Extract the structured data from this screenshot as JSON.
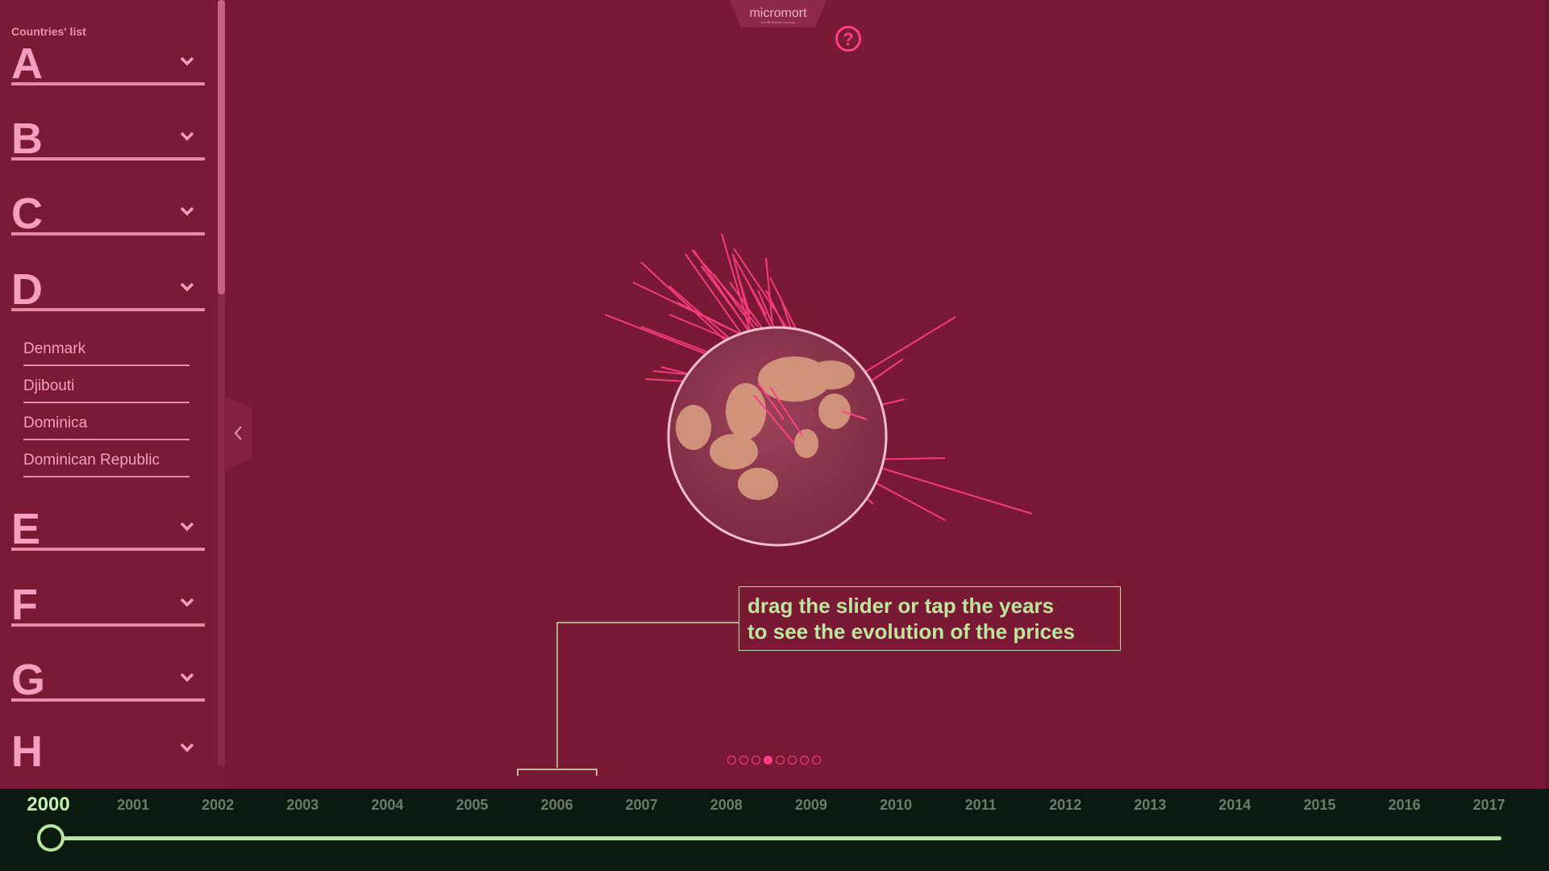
{
  "app": {
    "logo": "micromort",
    "logo_tagline": "the life hazard currency"
  },
  "sidebar": {
    "title": "Countries' list",
    "letters_top": [
      "A",
      "B",
      "C",
      "D"
    ],
    "expanded_letter": "D",
    "countries": [
      "Denmark",
      "Djibouti",
      "Dominica",
      "Dominican Republic"
    ],
    "letters_bottom": [
      "E",
      "F",
      "G",
      "H"
    ]
  },
  "help": {
    "label": "?"
  },
  "callout": {
    "line1": "drag the slider or tap the years",
    "line2": "to see the evolution of the prices"
  },
  "pagination": {
    "total": 8,
    "active_index": 3
  },
  "timeline": {
    "years": [
      "2000",
      "2001",
      "2002",
      "2003",
      "2004",
      "2005",
      "2006",
      "2007",
      "2008",
      "2009",
      "2010",
      "2011",
      "2012",
      "2013",
      "2014",
      "2015",
      "2016",
      "2017"
    ],
    "selected": "2000"
  },
  "colors": {
    "background": "#7a1934",
    "accent_pink": "#ff3e86",
    "accent_green": "#bde59e",
    "timeline_bg": "#0b1a0f"
  },
  "icons": [
    "chevron-down-icon",
    "chevron-left-icon",
    "question-icon",
    "globe-icon"
  ]
}
